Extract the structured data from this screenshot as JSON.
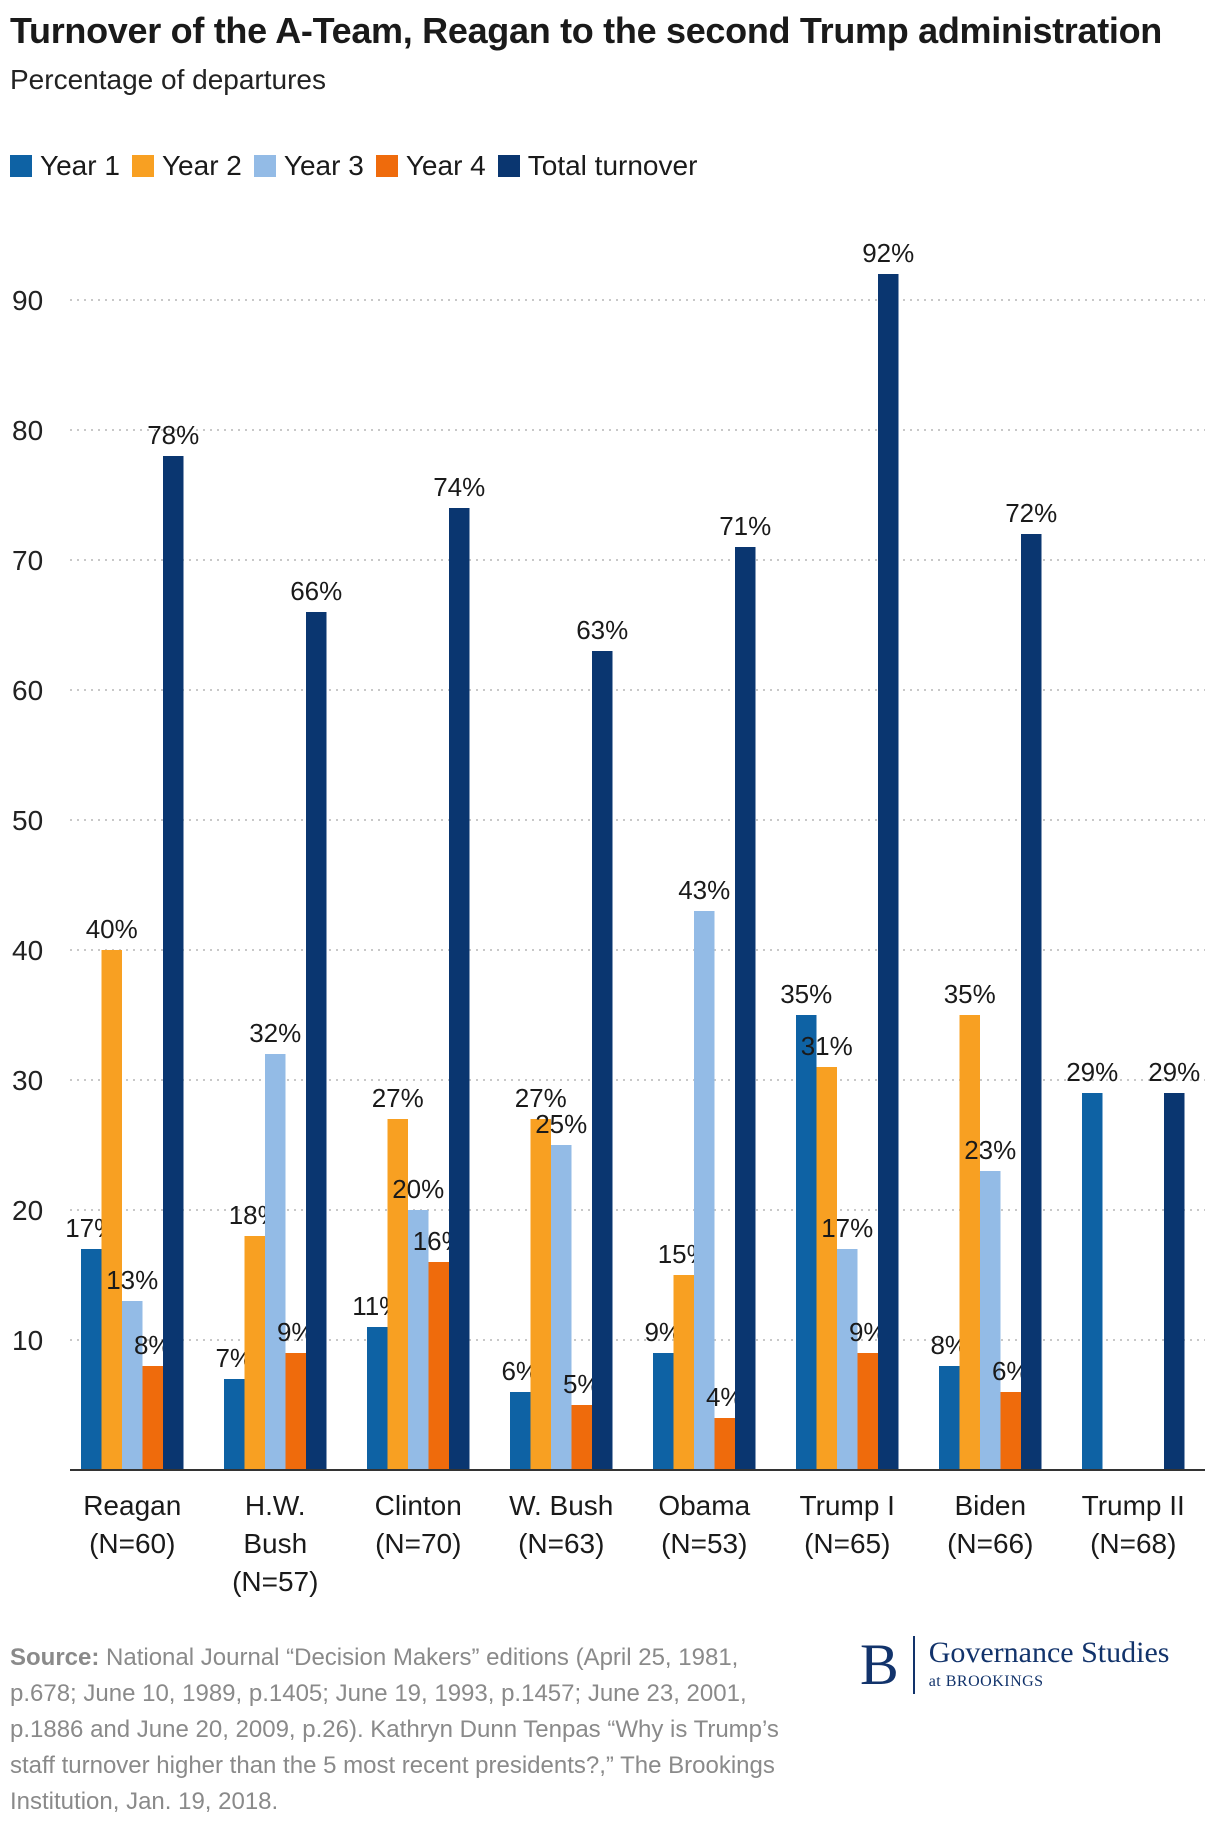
{
  "title": "Turnover of the A-Team, Reagan to the second Trump administration",
  "subtitle": "Percentage of departures",
  "legend": [
    {
      "label": "Year 1",
      "color": "#0e62a4"
    },
    {
      "label": "Year 2",
      "color": "#f8a022"
    },
    {
      "label": "Year 3",
      "color": "#93bbe6"
    },
    {
      "label": "Year 4",
      "color": "#ef6b0c"
    },
    {
      "label": "Total turnover",
      "color": "#0a3670"
    }
  ],
  "chart_data": {
    "type": "bar",
    "title": "Turnover of the A-Team, Reagan to the second Trump administration",
    "ylabel": "Percentage of departures",
    "xlabel": "",
    "ylim": [
      0,
      95
    ],
    "yticks": [
      10,
      20,
      30,
      40,
      50,
      60,
      70,
      80,
      90
    ],
    "categories": [
      [
        "Reagan",
        "(N=60)"
      ],
      [
        "H.W.",
        "Bush",
        "(N=57)"
      ],
      [
        "Clinton",
        "(N=70)"
      ],
      [
        "W. Bush",
        "(N=63)"
      ],
      [
        "Obama",
        "(N=53)"
      ],
      [
        "Trump I",
        "(N=65)"
      ],
      [
        "Biden",
        "(N=66)"
      ],
      [
        "Trump II",
        "(N=68)"
      ]
    ],
    "series": [
      {
        "name": "Year 1",
        "color": "#0e62a4",
        "values": [
          17,
          7,
          11,
          6,
          9,
          35,
          8,
          29
        ]
      },
      {
        "name": "Year 2",
        "color": "#f8a022",
        "values": [
          40,
          18,
          27,
          27,
          15,
          31,
          35,
          null
        ]
      },
      {
        "name": "Year 3",
        "color": "#93bbe6",
        "values": [
          13,
          32,
          20,
          25,
          43,
          17,
          23,
          null
        ]
      },
      {
        "name": "Year 4",
        "color": "#ef6b0c",
        "values": [
          8,
          9,
          16,
          5,
          4,
          9,
          6,
          null
        ]
      },
      {
        "name": "Total turnover",
        "color": "#0a3670",
        "values": [
          78,
          66,
          74,
          63,
          71,
          92,
          72,
          29
        ]
      }
    ],
    "value_suffix": "%",
    "grid": true
  },
  "source": {
    "label": "Source:",
    "text": "National Journal “Decision Makers” editions (April 25, 1981, p.678; June 10, 1989, p.1405; June 19, 1993, p.1457; June 23, 2001, p.1886 and June 20, 2009, p.26). Kathryn Dunn Tenpas “Why is Trump’s staff turnover higher than the 5 most recent presidents?,” The Brookings Institution, Jan. 19, 2018."
  },
  "logo": {
    "mark": "B",
    "name": "Governance Studies",
    "sub": "at BROOKINGS"
  }
}
